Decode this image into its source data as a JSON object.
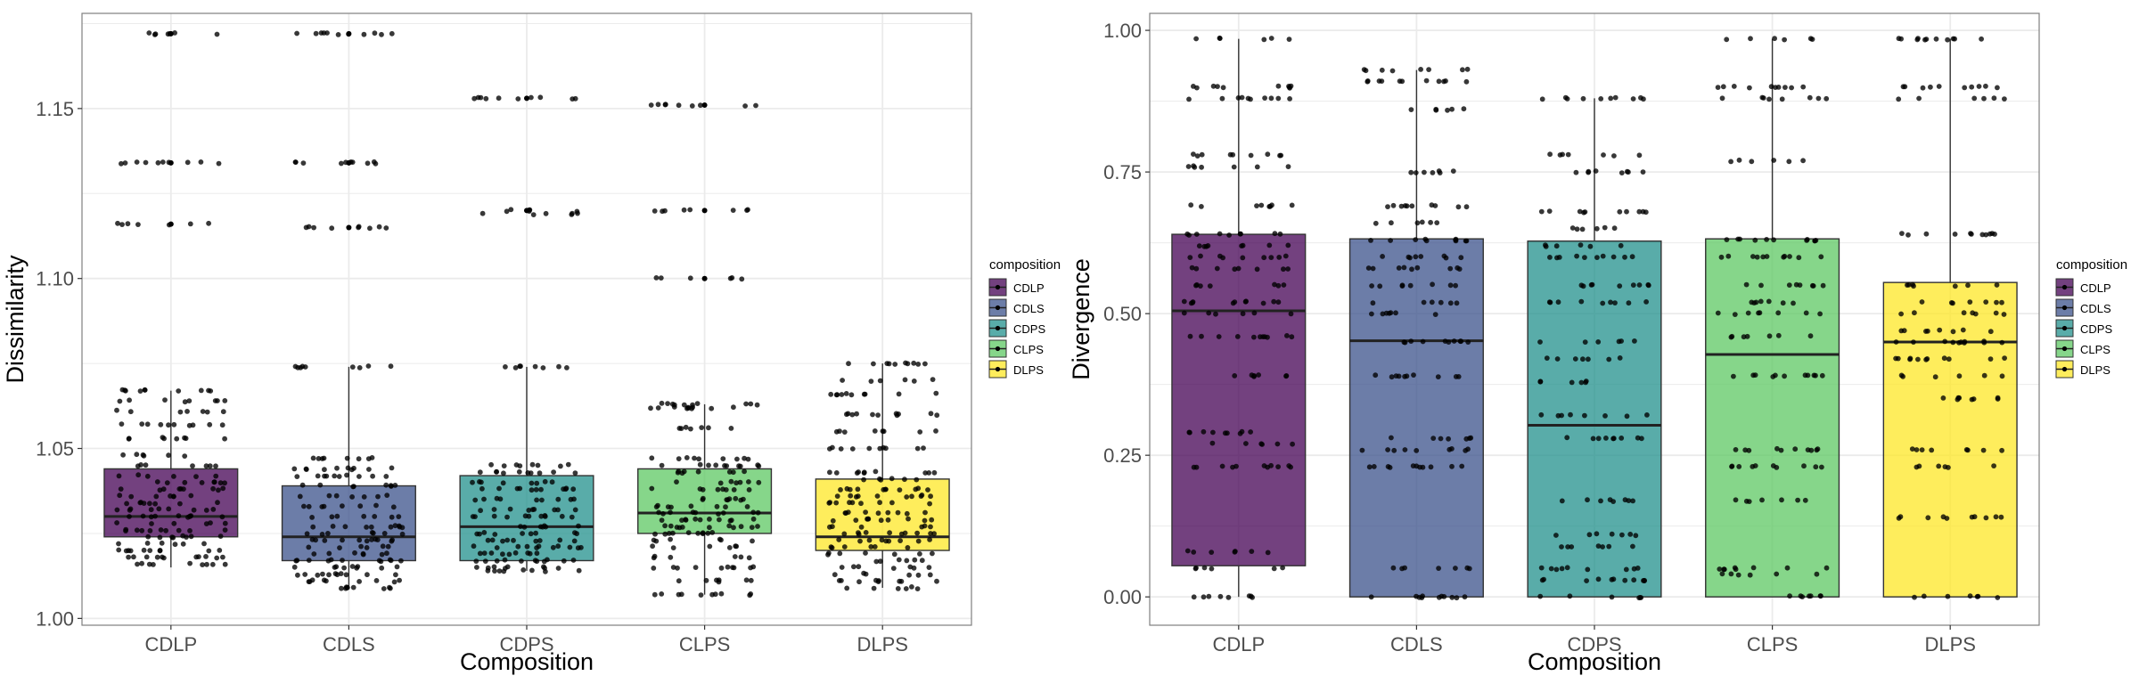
{
  "chart_data": [
    {
      "type": "boxplot",
      "xlabel": "Composition",
      "ylabel": "Dissimilarity",
      "categories": [
        "CDLP",
        "CDLS",
        "CDPS",
        "CLPS",
        "DLPS"
      ],
      "ylim": [
        0.998,
        1.178
      ],
      "yticks": [
        1.0,
        1.05,
        1.1,
        1.15
      ],
      "ytick_labels": [
        "1.00",
        "1.05",
        "1.10",
        "1.15"
      ],
      "grid": true,
      "legend": {
        "title": "composition",
        "position": "right",
        "entries": [
          "CDLP",
          "CDLS",
          "CDPS",
          "CLPS",
          "DLPS"
        ]
      },
      "boxes": [
        {
          "name": "CDLP",
          "min": 1.015,
          "q1": 1.024,
          "median": 1.03,
          "q3": 1.044,
          "max": 1.067,
          "outliers": [
            1.116,
            1.134,
            1.172
          ]
        },
        {
          "name": "CDLS",
          "min": 1.009,
          "q1": 1.017,
          "median": 1.024,
          "q3": 1.039,
          "max": 1.074,
          "outliers": [
            1.115,
            1.134,
            1.172
          ]
        },
        {
          "name": "CDPS",
          "min": 1.014,
          "q1": 1.017,
          "median": 1.027,
          "q3": 1.042,
          "max": 1.074,
          "outliers": [
            1.12,
            1.153
          ]
        },
        {
          "name": "CLPS",
          "min": 1.007,
          "q1": 1.025,
          "median": 1.031,
          "q3": 1.044,
          "max": 1.063,
          "outliers": [
            1.1,
            1.12,
            1.151
          ]
        },
        {
          "name": "DLPS",
          "min": 1.009,
          "q1": 1.02,
          "median": 1.024,
          "q3": 1.041,
          "max": 1.075,
          "outliers": []
        }
      ]
    },
    {
      "type": "boxplot",
      "xlabel": "Composition",
      "ylabel": "Divergence",
      "categories": [
        "CDLP",
        "CDLS",
        "CDPS",
        "CLPS",
        "DLPS"
      ],
      "ylim": [
        -0.05,
        1.03
      ],
      "yticks": [
        0.0,
        0.25,
        0.5,
        0.75,
        1.0
      ],
      "ytick_labels": [
        "0.00",
        "0.25",
        "0.50",
        "0.75",
        "1.00"
      ],
      "grid": true,
      "legend": {
        "title": "composition",
        "position": "right",
        "entries": [
          "CDLP",
          "CDLS",
          "CDPS",
          "CLPS",
          "DLPS"
        ]
      },
      "boxes": [
        {
          "name": "CDLP",
          "min": 0.0,
          "q1": 0.055,
          "median": 0.505,
          "q3": 0.64,
          "max": 0.985,
          "outliers": []
        },
        {
          "name": "CDLS",
          "min": 0.0,
          "q1": 0.0,
          "median": 0.452,
          "q3": 0.632,
          "max": 0.93,
          "outliers": []
        },
        {
          "name": "CDPS",
          "min": 0.0,
          "q1": 0.0,
          "median": 0.303,
          "q3": 0.628,
          "max": 0.88,
          "outliers": []
        },
        {
          "name": "CLPS",
          "min": 0.0,
          "q1": 0.0,
          "median": 0.428,
          "q3": 0.632,
          "max": 0.985,
          "outliers": []
        },
        {
          "name": "DLPS",
          "min": 0.0,
          "q1": 0.0,
          "median": 0.45,
          "q3": 0.555,
          "max": 0.985,
          "outliers": []
        }
      ]
    }
  ],
  "jitter_levels": [
    [
      1.016,
      1.018,
      1.02,
      1.022,
      1.024,
      1.026,
      1.028,
      1.03,
      1.032,
      1.034,
      1.036,
      1.038,
      1.04,
      1.042,
      1.045,
      1.048,
      1.053,
      1.057,
      1.061,
      1.064,
      1.067,
      1.116,
      1.134,
      1.172
    ],
    [
      1.009,
      1.011,
      1.013,
      1.015,
      1.017,
      1.019,
      1.021,
      1.023,
      1.025,
      1.027,
      1.03,
      1.033,
      1.036,
      1.039,
      1.042,
      1.044,
      1.047,
      1.074,
      1.115,
      1.134,
      1.172
    ],
    [
      1.014,
      1.015,
      1.017,
      1.019,
      1.021,
      1.023,
      1.025,
      1.027,
      1.03,
      1.032,
      1.035,
      1.038,
      1.04,
      1.043,
      1.045,
      1.074,
      1.119,
      1.12,
      1.153
    ],
    [
      1.007,
      1.011,
      1.015,
      1.018,
      1.021,
      1.023,
      1.025,
      1.027,
      1.029,
      1.031,
      1.033,
      1.035,
      1.038,
      1.04,
      1.043,
      1.045,
      1.047,
      1.056,
      1.062,
      1.063,
      1.1,
      1.12,
      1.151
    ],
    [
      1.009,
      1.011,
      1.013,
      1.015,
      1.017,
      1.019,
      1.021,
      1.023,
      1.025,
      1.027,
      1.029,
      1.031,
      1.034,
      1.036,
      1.038,
      1.041,
      1.043,
      1.05,
      1.055,
      1.06,
      1.066,
      1.07,
      1.075
    ],
    [
      0.0,
      0.05,
      0.08,
      0.23,
      0.27,
      0.29,
      0.39,
      0.46,
      0.5,
      0.52,
      0.55,
      0.58,
      0.6,
      0.62,
      0.64,
      0.69,
      0.76,
      0.78,
      0.88,
      0.9,
      0.985
    ],
    [
      0.0,
      0.05,
      0.23,
      0.26,
      0.28,
      0.39,
      0.45,
      0.5,
      0.52,
      0.55,
      0.58,
      0.6,
      0.63,
      0.66,
      0.69,
      0.75,
      0.86,
      0.91,
      0.93
    ],
    [
      0.0,
      0.03,
      0.05,
      0.09,
      0.11,
      0.17,
      0.28,
      0.32,
      0.38,
      0.42,
      0.45,
      0.52,
      0.55,
      0.6,
      0.62,
      0.65,
      0.68,
      0.75,
      0.78,
      0.88
    ],
    [
      0.0,
      0.04,
      0.05,
      0.17,
      0.23,
      0.26,
      0.39,
      0.46,
      0.5,
      0.52,
      0.55,
      0.6,
      0.63,
      0.77,
      0.88,
      0.9,
      0.985
    ],
    [
      0.0,
      0.14,
      0.23,
      0.26,
      0.35,
      0.39,
      0.42,
      0.45,
      0.47,
      0.5,
      0.52,
      0.55,
      0.64,
      0.88,
      0.9,
      0.985
    ]
  ],
  "colors": {
    "CDLP": "#440154",
    "CDLS": "#3b528b",
    "CDPS": "#21908c",
    "CLPS": "#5dc863",
    "DLPS": "#fde725",
    "grid": "#ebebeb",
    "panel_border": "#7f7f7f",
    "point": "#000000"
  },
  "box_alpha": 0.75
}
